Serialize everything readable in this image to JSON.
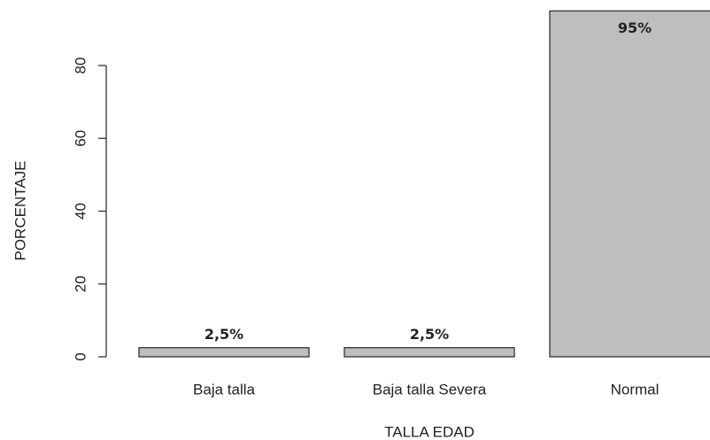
{
  "chart_data": {
    "type": "bar",
    "xlabel": "TALLA EDAD",
    "ylabel": "PORCENTAJE",
    "categories": [
      "Baja talla",
      "Baja talla Severa",
      "Normal"
    ],
    "values": [
      2.5,
      2.5,
      95
    ],
    "value_labels": [
      "2,5%",
      "2,5%",
      "95%"
    ],
    "color": "#bebebe",
    "ylim": [
      0,
      98
    ],
    "yticks": [
      0,
      20,
      40,
      60,
      80
    ],
    "grid": false
  }
}
